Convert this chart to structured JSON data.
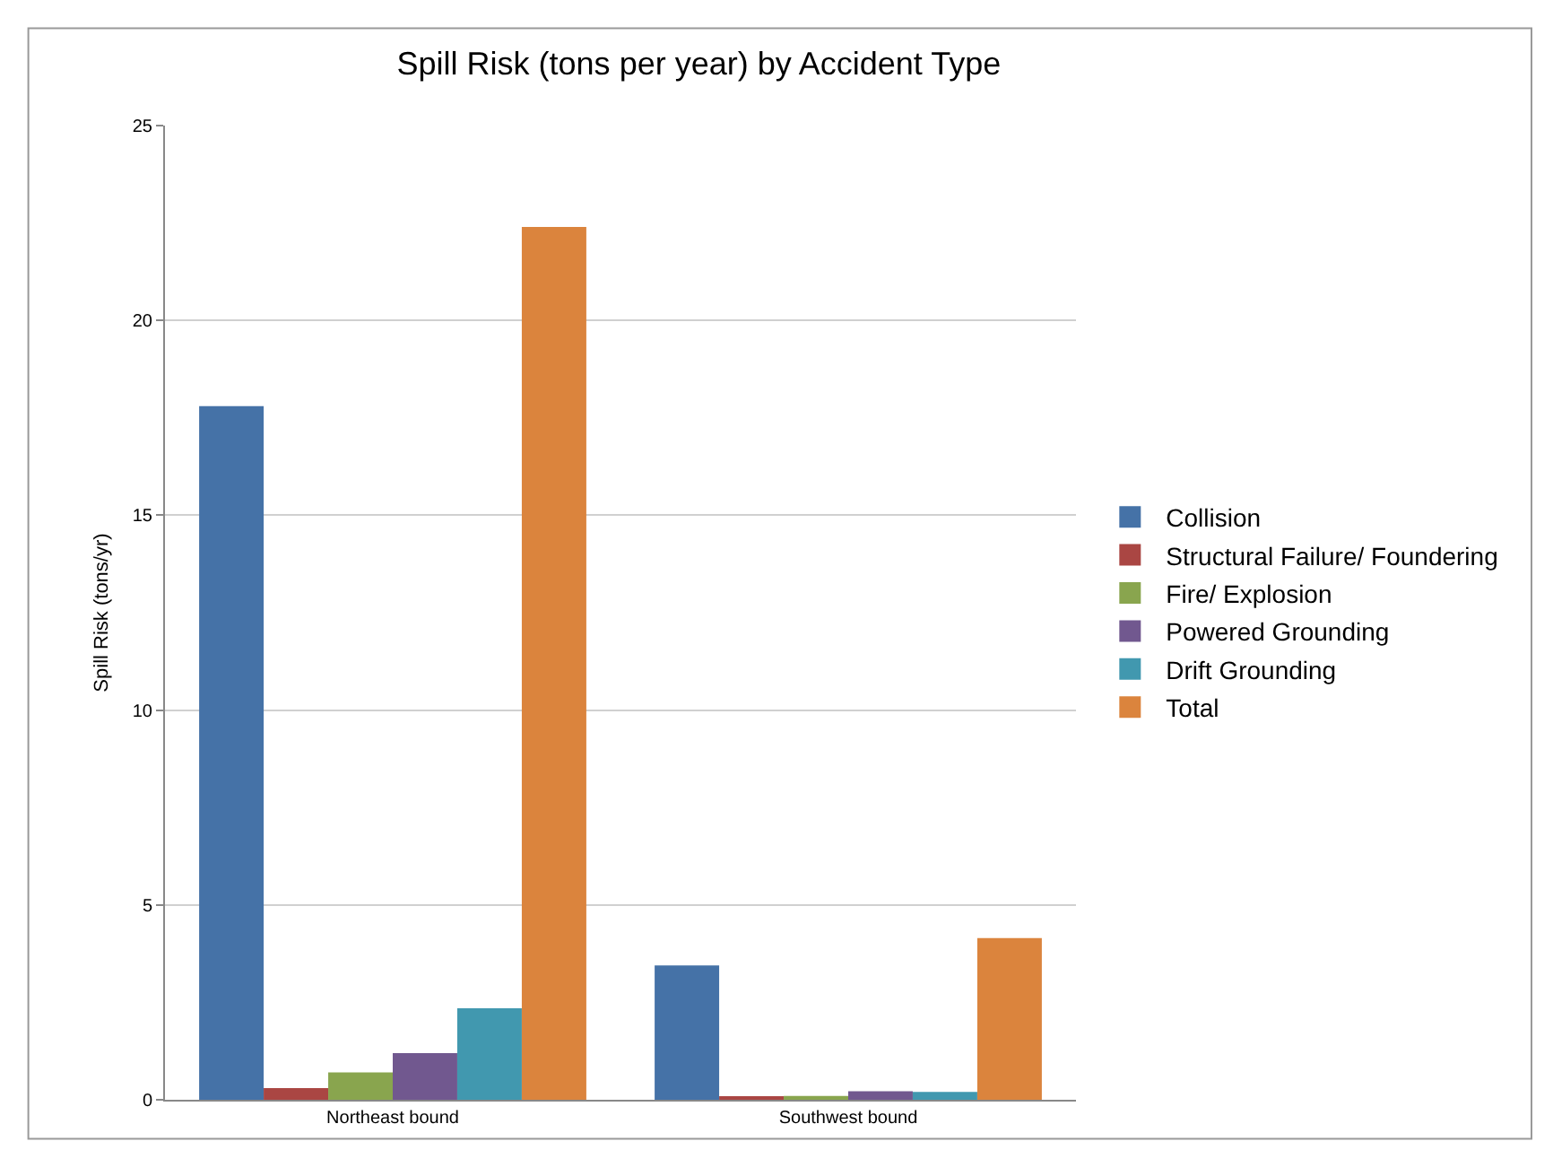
{
  "chart_data": {
    "type": "bar",
    "title": "Spill Risk (tons per year) by Accident Type",
    "ylabel": "Spill Risk (tons/yr)",
    "categories": [
      "Northeast bound",
      "Southwest bound"
    ],
    "series": [
      {
        "name": "Collision",
        "color": "#4572a7",
        "values": [
          17.8,
          3.45
        ]
      },
      {
        "name": "Structural Failure/ Foundering",
        "color": "#aa4643",
        "values": [
          0.3,
          0.05
        ]
      },
      {
        "name": "Fire/ Explosion",
        "color": "#89a54e",
        "values": [
          0.7,
          0.1
        ]
      },
      {
        "name": "Powered Grounding",
        "color": "#71588f",
        "values": [
          1.2,
          0.22
        ]
      },
      {
        "name": "Drift Grounding",
        "color": "#4198af",
        "values": [
          2.35,
          0.2
        ]
      },
      {
        "name": "Total",
        "color": "#db843d",
        "values": [
          22.4,
          4.15
        ]
      }
    ],
    "ylim": [
      0,
      25
    ],
    "yticks": [
      0,
      5,
      10,
      15,
      20,
      25
    ],
    "grid": "y",
    "legend": "right"
  }
}
